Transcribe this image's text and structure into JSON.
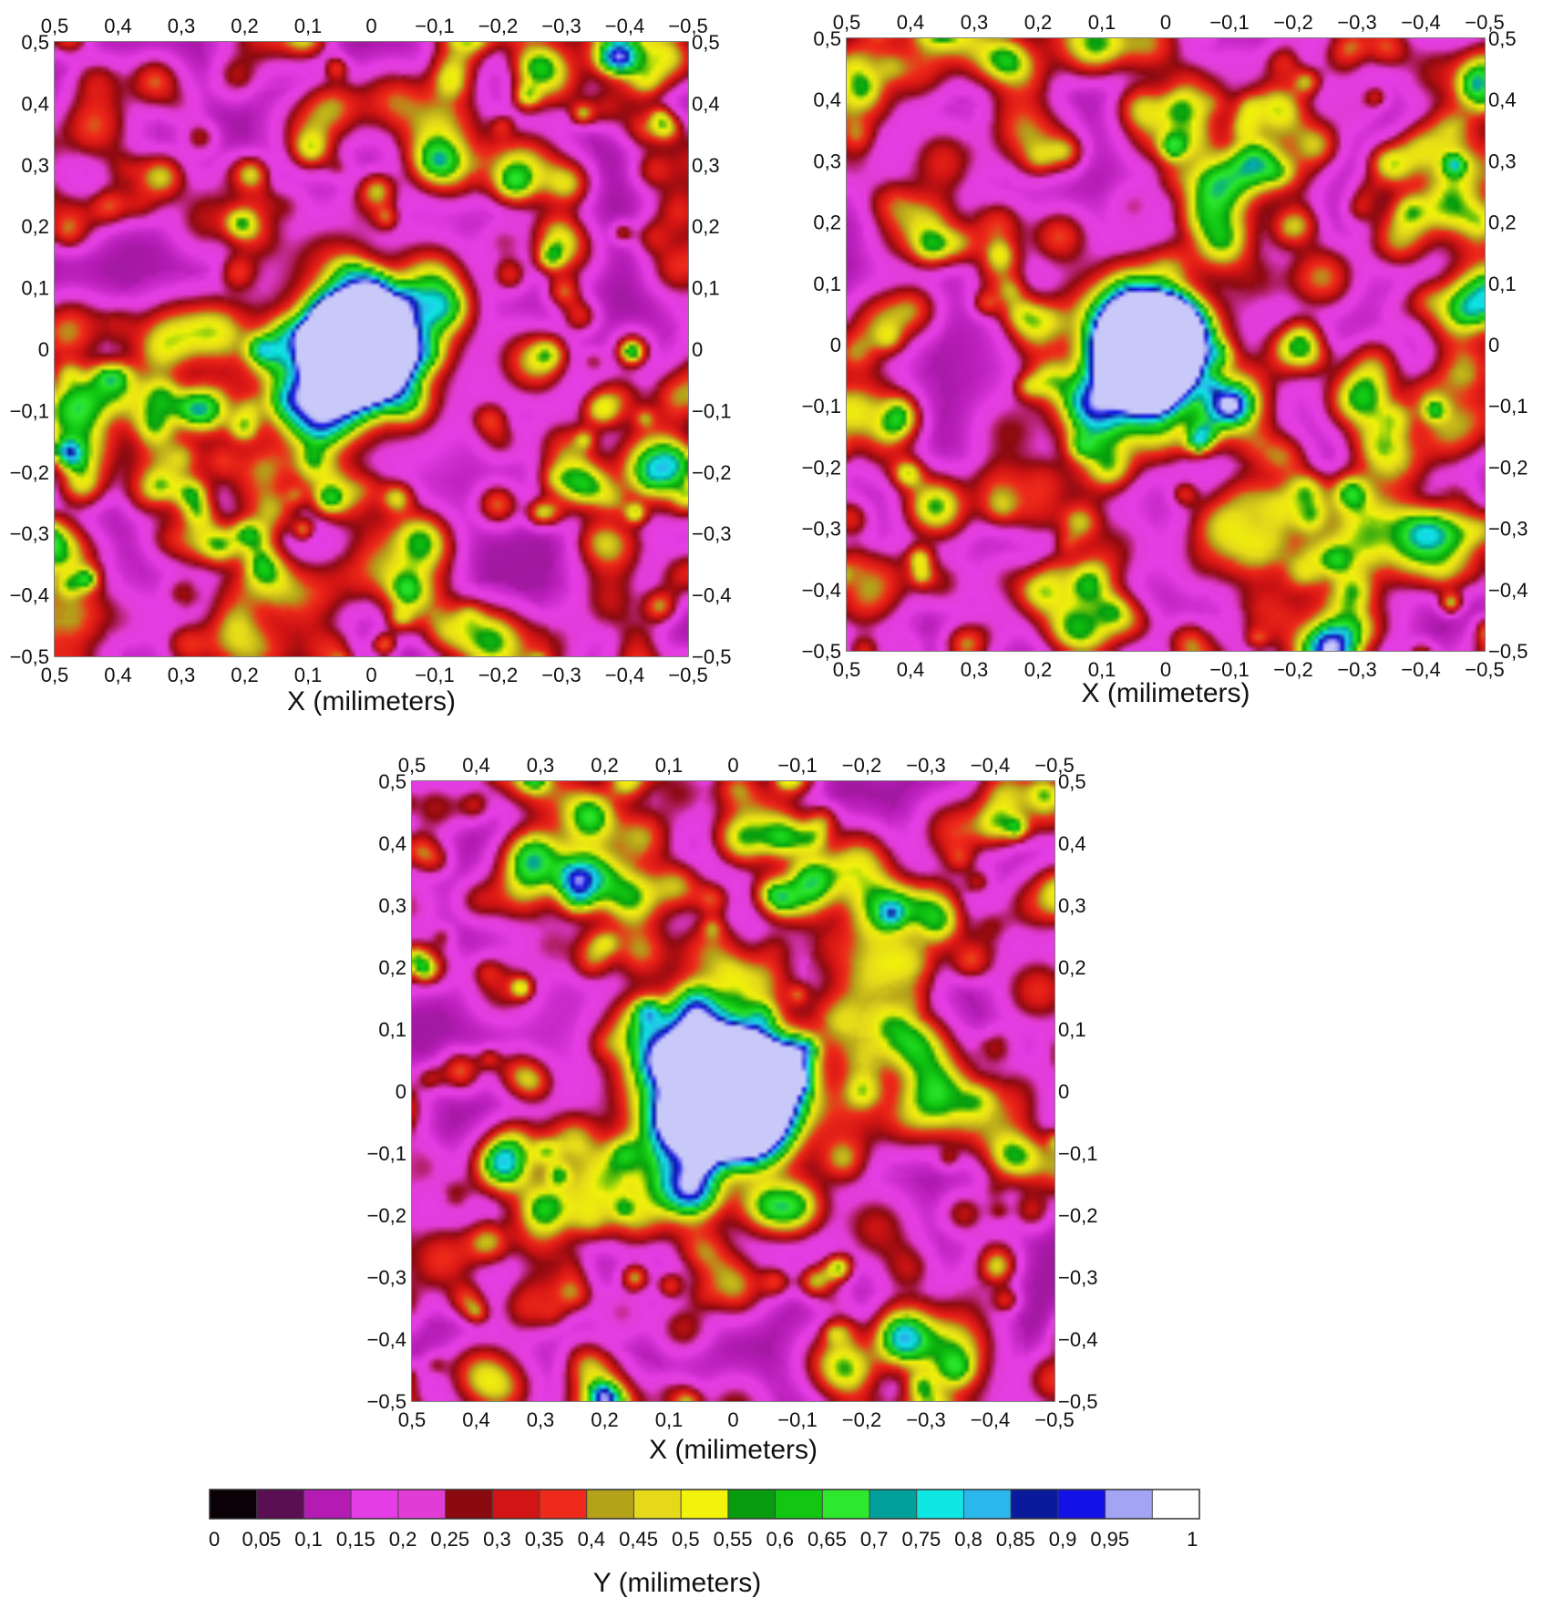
{
  "chart_data": {
    "type": "heatmap",
    "panels": [
      {
        "id": "top-left",
        "xlabel": "X (milimeters)",
        "x_ticks": [
          "0,5",
          "0,4",
          "0,3",
          "0,2",
          "0,1",
          "0",
          "−0,1",
          "−0,2",
          "−0,3",
          "−0,4",
          "−0,5"
        ],
        "y_ticks": [
          "0,5",
          "0,4",
          "0,3",
          "0,2",
          "0,1",
          "0",
          "−0,1",
          "−0,2",
          "−0,3",
          "−0,4",
          "−0,5"
        ],
        "xlim": [
          0.5,
          -0.5
        ],
        "ylim": [
          -0.5,
          0.5
        ],
        "peak": {
          "x": 0.03,
          "y": 0.0,
          "value": 1.0
        },
        "center_spread": 0.12
      },
      {
        "id": "top-right",
        "xlabel": "X (milimeters)",
        "x_ticks": [
          "0,5",
          "0,4",
          "0,3",
          "0,2",
          "0,1",
          "0",
          "−0,1",
          "−0,2",
          "−0,3",
          "−0,4",
          "−0,5"
        ],
        "y_ticks": [
          "0,5",
          "0,4",
          "0,3",
          "0,2",
          "0,1",
          "0",
          "−0,1",
          "−0,2",
          "−0,3",
          "−0,4",
          "−0,5"
        ],
        "xlim": [
          0.5,
          -0.5
        ],
        "ylim": [
          -0.5,
          0.5
        ],
        "peak": {
          "x": 0.04,
          "y": -0.02,
          "value": 1.0
        },
        "center_spread": 0.11
      },
      {
        "id": "bottom",
        "xlabel": "X (milimeters)",
        "x_ticks": [
          "0,5",
          "0,4",
          "0,3",
          "0,2",
          "0,1",
          "0",
          "−0,1",
          "−0,2",
          "−0,3",
          "−0,4",
          "−0,5"
        ],
        "y_ticks": [
          "0,5",
          "0,4",
          "0,3",
          "0,2",
          "0,1",
          "0",
          "−0,1",
          "−0,2",
          "−0,3",
          "−0,4",
          "−0,5"
        ],
        "xlim": [
          0.5,
          -0.5
        ],
        "ylim": [
          -0.5,
          0.5
        ],
        "peak": {
          "x": 0.02,
          "y": 0.0,
          "value": 1.0
        },
        "center_spread": 0.13
      }
    ],
    "colorbar": {
      "label": "Y (milimeters)",
      "range": [
        0,
        1
      ],
      "tick_labels": [
        "0",
        "0,05",
        "0,1",
        "0,15",
        "0,2",
        "0,25",
        "0,3",
        "0,35",
        "0,4",
        "0,45",
        "0,5",
        "0,55",
        "0,6",
        "0,65",
        "0,7",
        "0,75",
        "0,8",
        "0,85",
        "0,9",
        "0,95",
        "1"
      ],
      "colors": [
        "#0a0006",
        "#5a0f52",
        "#b31bb3",
        "#e53de5",
        "#e23cd7",
        "#8a0a10",
        "#d31414",
        "#ef2a1a",
        "#b3a21a",
        "#e5d91a",
        "#f2f20a",
        "#069c0e",
        "#12c712",
        "#2de82d",
        "#02a09a",
        "#0ee7e3",
        "#2ab8ec",
        "#0a1a9c",
        "#1212e6",
        "#a4a4f5",
        "#ffffff"
      ]
    },
    "grid": true,
    "zero_lines": true
  }
}
